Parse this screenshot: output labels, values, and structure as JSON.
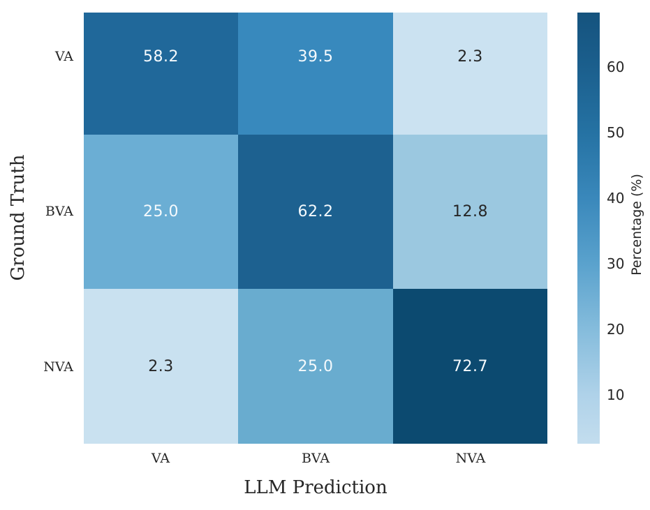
{
  "figure": {
    "background": "#ffffff"
  },
  "chart_data": {
    "type": "heatmap",
    "title": "",
    "xlabel": "LLM Prediction",
    "ylabel": "Ground Truth",
    "x_categories": [
      "VA",
      "BVA",
      "NVA"
    ],
    "y_categories": [
      "VA",
      "BVA",
      "NVA"
    ],
    "values": [
      [
        58.2,
        39.5,
        2.3
      ],
      [
        25.0,
        62.2,
        12.8
      ],
      [
        2.3,
        25.0,
        72.7
      ]
    ],
    "colormap": "Blues",
    "grid": false,
    "cell_colors": [
      [
        "#20689A",
        "#3889BD",
        "#CBE2F1"
      ],
      [
        "#6BAED4",
        "#1D6190",
        "#9BC8E0"
      ],
      [
        "#C9E1F0",
        "#69ACCF",
        "#0C4A70"
      ]
    ],
    "cell_text_colors": [
      [
        "#F5FAFD",
        "#F5FAFD",
        "#262626"
      ],
      [
        "#F5FAFD",
        "#F5FAFD",
        "#262626"
      ],
      [
        "#262626",
        "#F5FAFD",
        "#F5FAFD"
      ]
    ],
    "colorbar": {
      "label": "Percentage (%)",
      "ticks": [
        60,
        50,
        40,
        30,
        20,
        10
      ],
      "vmin": 2.6,
      "vmax": 68.3,
      "gradient_stops": [
        [
          0.0,
          "#C3DDEE"
        ],
        [
          0.113,
          "#AFD2E9"
        ],
        [
          0.265,
          "#85BCDC"
        ],
        [
          0.417,
          "#5AA2CD"
        ],
        [
          0.569,
          "#3A88BB"
        ],
        [
          0.722,
          "#2572A3"
        ],
        [
          0.874,
          "#1B5F8D"
        ],
        [
          1.0,
          "#15537E"
        ]
      ]
    }
  }
}
